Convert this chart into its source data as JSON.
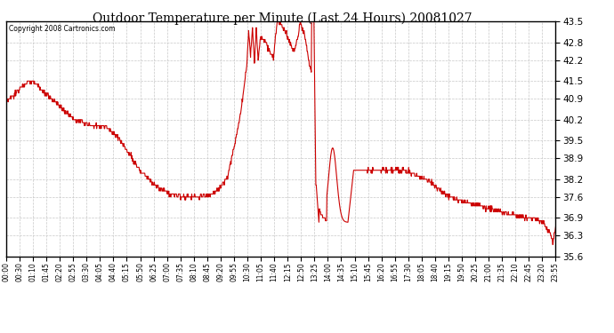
{
  "title": "Outdoor Temperature per Minute (Last 24 Hours) 20081027",
  "copyright": "Copyright 2008 Cartronics.com",
  "line_color": "#cc0000",
  "background_color": "#ffffff",
  "grid_color": "#c8c8c8",
  "ylim": [
    35.6,
    43.5
  ],
  "yticks": [
    35.6,
    36.3,
    36.9,
    37.6,
    38.2,
    38.9,
    39.5,
    40.2,
    40.9,
    41.5,
    42.2,
    42.8,
    43.5
  ],
  "x_labels": [
    "00:00",
    "00:30",
    "01:10",
    "01:45",
    "02:20",
    "02:55",
    "03:30",
    "04:05",
    "04:40",
    "05:15",
    "05:50",
    "06:25",
    "07:00",
    "07:35",
    "08:10",
    "08:45",
    "09:20",
    "09:55",
    "10:30",
    "11:05",
    "11:40",
    "12:15",
    "12:50",
    "13:25",
    "14:00",
    "14:35",
    "15:10",
    "15:45",
    "16:20",
    "16:55",
    "17:30",
    "18:05",
    "18:40",
    "19:15",
    "19:50",
    "20:25",
    "21:00",
    "21:35",
    "22:10",
    "22:45",
    "23:20",
    "23:55"
  ],
  "key_times": [
    0,
    20,
    40,
    60,
    70,
    80,
    90,
    100,
    110,
    120,
    130,
    150,
    170,
    200,
    230,
    260,
    300,
    350,
    400,
    430,
    450,
    470,
    480,
    490,
    500,
    520,
    540,
    560,
    580,
    600,
    615,
    625,
    630,
    635,
    640,
    645,
    650,
    655,
    660,
    665,
    670,
    680,
    690,
    700,
    710,
    720,
    730,
    740,
    750,
    755,
    760,
    765,
    770,
    775,
    780,
    785,
    790,
    795,
    800,
    803,
    806,
    810,
    815,
    820,
    825,
    830,
    835,
    840,
    845,
    850,
    855,
    858,
    862,
    865,
    870,
    875,
    880,
    885,
    890,
    895,
    900,
    910,
    920,
    930,
    940,
    950,
    960,
    970,
    980,
    990,
    1000,
    1010,
    1020,
    1030,
    1040,
    1060,
    1080,
    1100,
    1120,
    1140,
    1160,
    1180,
    1210,
    1240,
    1270,
    1300,
    1330,
    1360,
    1385,
    1400,
    1415,
    1425,
    1432,
    1439
  ],
  "key_vals": [
    40.8,
    41.0,
    41.3,
    41.5,
    41.5,
    41.4,
    41.2,
    41.1,
    41.0,
    40.9,
    40.8,
    40.5,
    40.3,
    40.1,
    40.0,
    40.0,
    39.5,
    38.5,
    37.9,
    37.7,
    37.65,
    37.6,
    37.6,
    37.6,
    37.6,
    37.65,
    37.7,
    37.9,
    38.3,
    39.5,
    40.5,
    41.5,
    42.0,
    43.2,
    42.3,
    43.3,
    42.1,
    43.3,
    42.2,
    42.9,
    43.0,
    42.8,
    42.5,
    42.3,
    43.5,
    43.4,
    43.2,
    42.9,
    42.6,
    42.5,
    42.8,
    43.0,
    43.5,
    43.3,
    43.1,
    42.8,
    42.4,
    42.0,
    41.8,
    41.0,
    40.0,
    38.5,
    37.5,
    37.2,
    37.0,
    36.9,
    36.85,
    36.8,
    36.82,
    36.78,
    36.76,
    36.74,
    36.72,
    36.7,
    36.72,
    36.75,
    36.8,
    36.82,
    36.85,
    37.6,
    38.5,
    39.2,
    39.3,
    39.0,
    38.6,
    38.5,
    38.5,
    38.5,
    38.5,
    38.5,
    38.5,
    38.5,
    38.5,
    38.5,
    38.5,
    38.4,
    38.3,
    38.2,
    38.0,
    37.8,
    37.6,
    37.5,
    37.4,
    37.3,
    37.2,
    37.1,
    37.0,
    36.9,
    36.85,
    36.8,
    36.6,
    36.35,
    36.1,
    36.6
  ]
}
